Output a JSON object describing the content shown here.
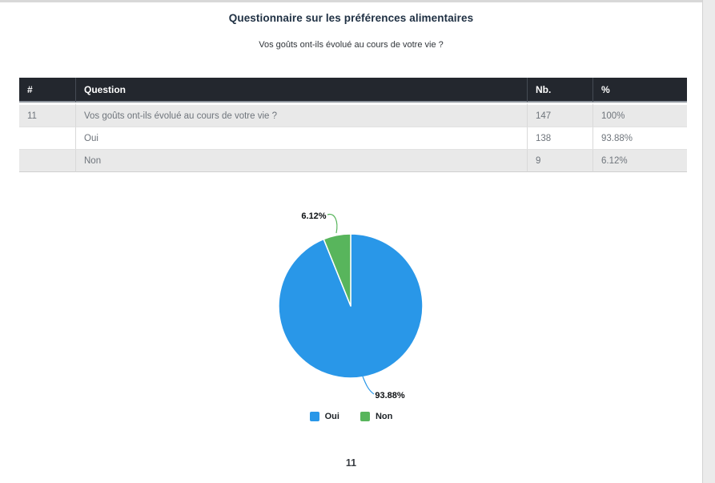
{
  "page": {
    "title": "Questionnaire sur les préférences alimentaires",
    "subtitle": "Vos goûts ont-ils évolué au cours de votre vie ?",
    "page_number": "11"
  },
  "table": {
    "headers": [
      "#",
      "Question",
      "Nb.",
      "%"
    ],
    "rows": [
      {
        "num": "11",
        "question": "Vos goûts ont-ils évolué au cours de votre vie ?",
        "nb": "147",
        "pct": "100%"
      },
      {
        "num": "",
        "question": "Oui",
        "nb": "138",
        "pct": "93.88%"
      },
      {
        "num": "",
        "question": "Non",
        "nb": "9",
        "pct": "6.12%"
      }
    ]
  },
  "chart_data": {
    "type": "pie",
    "categories": [
      "Oui",
      "Non"
    ],
    "values": [
      93.88,
      6.12
    ],
    "counts": [
      138,
      9
    ],
    "labels": [
      "93.88%",
      "6.12%"
    ],
    "colors": [
      "#2997E8",
      "#58B55C"
    ],
    "legend": [
      {
        "label": "Oui",
        "color": "#2997E8"
      },
      {
        "label": "Non",
        "color": "#58B55C"
      }
    ],
    "legend_position": "bottom",
    "start_angle_deg": 0,
    "direction": "clockwise"
  },
  "colors": {
    "table_header_bg": "#23272e",
    "table_row_alt_bg": "#e9e9e9",
    "pie_oui": "#2997E8",
    "pie_non": "#58B55C"
  }
}
